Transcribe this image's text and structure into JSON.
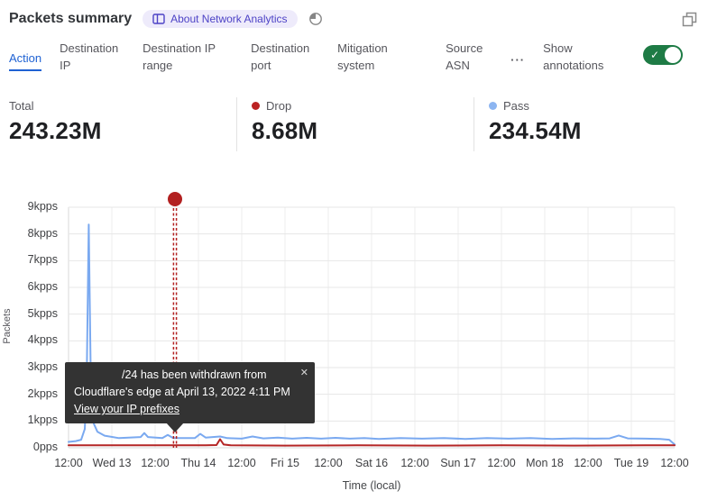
{
  "header": {
    "title": "Packets summary",
    "badge_label": "About Network Analytics"
  },
  "tabs": [
    {
      "label": "Action",
      "active": true
    },
    {
      "label": "Destination IP",
      "active": false
    },
    {
      "label": "Destination IP range",
      "active": false
    },
    {
      "label": "Destination port",
      "active": false
    },
    {
      "label": "Mitigation system",
      "active": false
    },
    {
      "label": "Source ASN",
      "active": false
    }
  ],
  "more_tab": {
    "label": "···"
  },
  "annotations_toggle": {
    "label": "Show annotations",
    "on": true,
    "color": "#1e7b45",
    "check_glyph": "✓"
  },
  "stats": [
    {
      "label": "Total",
      "value": "243.23M",
      "dot": null
    },
    {
      "label": "Drop",
      "value": "8.68M",
      "dot": "#bb2222"
    },
    {
      "label": "Pass",
      "value": "234.54M",
      "dot": "#8cb5f1"
    }
  ],
  "tooltip": {
    "line1": "/24 has been withdrawn from",
    "line2": "Cloudflare's edge at April 13, 2022 4:11 PM",
    "link_label": "View your IP prefixes",
    "close_glyph": "✕"
  },
  "icons": {
    "badge": "book-icon",
    "header_time": "clock-icon",
    "window": "expand-icon",
    "more": "ellipsis-icon"
  },
  "chart_data": {
    "type": "line",
    "title": "Packets summary over time",
    "ylabel": "Packets",
    "xlabel": "Time (local)",
    "unit": "kpps",
    "ylim": [
      0,
      9
    ],
    "yticks": [
      "9kpps",
      "8kpps",
      "7kpps",
      "6kpps",
      "5kpps",
      "4kpps",
      "3kpps",
      "2kpps",
      "1kpps",
      "0pps"
    ],
    "xticks": [
      "12:00",
      "Wed 13",
      "12:00",
      "Thu 14",
      "12:00",
      "Fri 15",
      "12:00",
      "Sat 16",
      "12:00",
      "Sun 17",
      "12:00",
      "Mon 18",
      "12:00",
      "Tue 19",
      "12:00"
    ],
    "x_range_hours": [
      0,
      168
    ],
    "grid": true,
    "legend_position": "none",
    "series": [
      {
        "name": "Pass",
        "color": "#7aa9f0",
        "points": [
          [
            0,
            0.22
          ],
          [
            2,
            0.25
          ],
          [
            3.5,
            0.3
          ],
          [
            4.5,
            0.7
          ],
          [
            5,
            2.2
          ],
          [
            5.6,
            8.35
          ],
          [
            6.2,
            2.2
          ],
          [
            7,
            0.9
          ],
          [
            8,
            0.6
          ],
          [
            10,
            0.45
          ],
          [
            14,
            0.36
          ],
          [
            20,
            0.4
          ],
          [
            21,
            0.55
          ],
          [
            22,
            0.4
          ],
          [
            26,
            0.36
          ],
          [
            27.5,
            0.48
          ],
          [
            29,
            0.36
          ],
          [
            35,
            0.36
          ],
          [
            36.5,
            0.52
          ],
          [
            38,
            0.38
          ],
          [
            42,
            0.42
          ],
          [
            44,
            0.36
          ],
          [
            48,
            0.34
          ],
          [
            51,
            0.42
          ],
          [
            54,
            0.35
          ],
          [
            58,
            0.38
          ],
          [
            62,
            0.34
          ],
          [
            66,
            0.37
          ],
          [
            70,
            0.34
          ],
          [
            74,
            0.37
          ],
          [
            78,
            0.34
          ],
          [
            82,
            0.36
          ],
          [
            86,
            0.33
          ],
          [
            92,
            0.36
          ],
          [
            98,
            0.34
          ],
          [
            104,
            0.36
          ],
          [
            110,
            0.33
          ],
          [
            116,
            0.36
          ],
          [
            122,
            0.34
          ],
          [
            128,
            0.36
          ],
          [
            134,
            0.33
          ],
          [
            140,
            0.35
          ],
          [
            146,
            0.34
          ],
          [
            150,
            0.35
          ],
          [
            152.5,
            0.46
          ],
          [
            155,
            0.35
          ],
          [
            160,
            0.34
          ],
          [
            164,
            0.33
          ],
          [
            166.5,
            0.3
          ],
          [
            168,
            0.12
          ]
        ]
      },
      {
        "name": "Drop",
        "color": "#b42525",
        "points": [
          [
            0,
            0.09
          ],
          [
            38,
            0.09
          ],
          [
            41,
            0.1
          ],
          [
            42,
            0.32
          ],
          [
            43,
            0.12
          ],
          [
            45,
            0.09
          ],
          [
            60,
            0.08
          ],
          [
            80,
            0.09
          ],
          [
            100,
            0.08
          ],
          [
            120,
            0.09
          ],
          [
            140,
            0.08
          ],
          [
            160,
            0.09
          ],
          [
            168,
            0.09
          ]
        ]
      }
    ],
    "annotation": {
      "x_hours": 29.5,
      "color": "#b22020",
      "label": "IP prefix withdrawn annotation"
    }
  }
}
